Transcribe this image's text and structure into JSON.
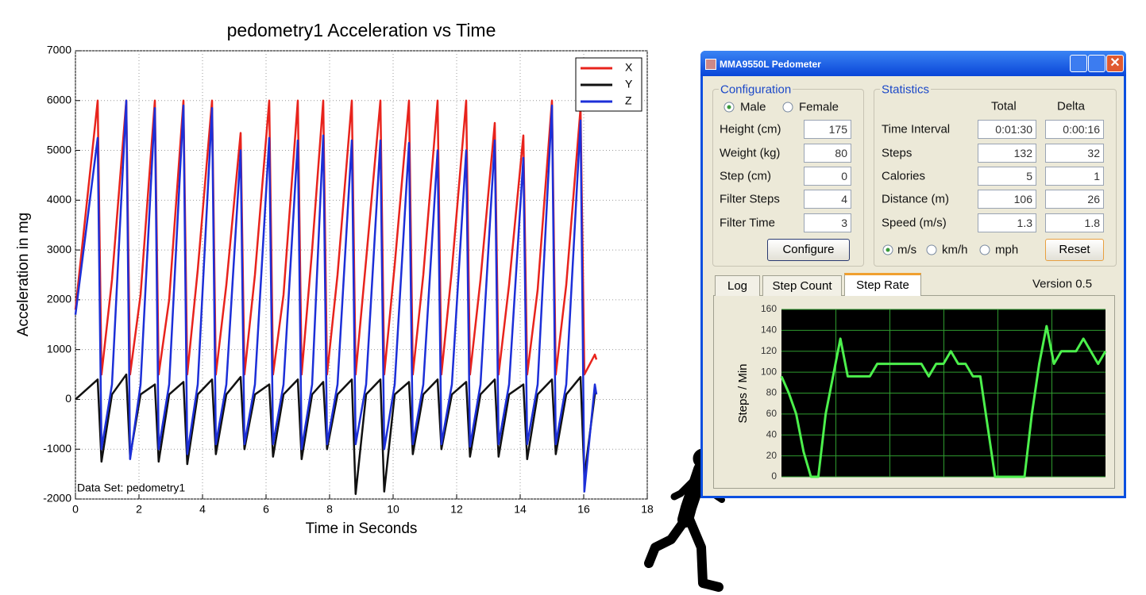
{
  "chart_data": [
    {
      "type": "line",
      "title": "pedometry1 Acceleration vs Time",
      "x_label": "Time in Seconds",
      "y_label": "Acceleration in mg",
      "annotation": "Data Set: pedometry1",
      "xlim": [
        0,
        18
      ],
      "xticks": [
        0,
        2,
        4,
        6,
        8,
        10,
        12,
        14,
        16,
        18
      ],
      "ylim": [
        -2000,
        7000
      ],
      "yticks": [
        -2000,
        -1000,
        0,
        1000,
        2000,
        3000,
        4000,
        5000,
        6000,
        7000
      ],
      "grid": true,
      "legend": "upper right",
      "x": [
        0,
        0.7,
        0.82,
        1.15,
        1.6,
        1.72,
        2.05,
        2.5,
        2.62,
        2.95,
        3.4,
        3.52,
        3.85,
        4.3,
        4.42,
        4.75,
        5.2,
        5.32,
        5.65,
        6.1,
        6.22,
        6.55,
        7.0,
        7.12,
        7.45,
        7.8,
        7.92,
        8.25,
        8.7,
        8.82,
        9.15,
        9.6,
        9.72,
        10.05,
        10.5,
        10.62,
        10.95,
        11.4,
        11.52,
        11.85,
        12.3,
        12.42,
        12.75,
        13.2,
        13.32,
        13.65,
        14.1,
        14.22,
        14.55,
        15.0,
        15.12,
        15.45,
        15.9,
        16.02,
        16.35,
        16.4
      ],
      "series": [
        {
          "name": "X",
          "color": "#e8231c",
          "values": [
            1800,
            6000,
            500,
            2400,
            6000,
            500,
            2100,
            6000,
            500,
            2000,
            6000,
            500,
            2600,
            6000,
            500,
            2300,
            5350,
            500,
            2500,
            6000,
            500,
            2100,
            6000,
            500,
            3000,
            6000,
            500,
            2500,
            6000,
            500,
            2800,
            6000,
            500,
            2700,
            6000,
            500,
            2500,
            6000,
            500,
            2600,
            6000,
            500,
            2400,
            5550,
            500,
            2300,
            5300,
            500,
            2200,
            6000,
            500,
            2300,
            5850,
            500,
            900,
            800
          ]
        },
        {
          "name": "Y",
          "color": "#111111",
          "values": [
            0,
            400,
            -1250,
            100,
            500,
            -1150,
            100,
            300,
            -1250,
            100,
            350,
            -1300,
            100,
            400,
            -1100,
            100,
            450,
            -1000,
            100,
            300,
            -1150,
            100,
            400,
            -1200,
            100,
            350,
            -1000,
            100,
            400,
            -1900,
            100,
            400,
            -1850,
            100,
            350,
            -1100,
            100,
            400,
            -1000,
            100,
            350,
            -1150,
            100,
            400,
            -1150,
            100,
            300,
            -1200,
            100,
            400,
            -1100,
            100,
            450,
            -1550,
            100,
            150
          ]
        },
        {
          "name": "Z",
          "color": "#1c2fd8",
          "values": [
            1700,
            5250,
            -1000,
            300,
            6000,
            -1200,
            300,
            5850,
            -1000,
            300,
            5900,
            -1100,
            300,
            5850,
            -900,
            300,
            5000,
            -900,
            300,
            5250,
            -900,
            300,
            5200,
            -1000,
            300,
            5300,
            -900,
            300,
            5200,
            -900,
            300,
            5200,
            -1000,
            300,
            5150,
            -900,
            300,
            5000,
            -900,
            300,
            5000,
            -950,
            300,
            5200,
            -900,
            300,
            4850,
            -900,
            300,
            5900,
            -900,
            300,
            5600,
            -1850,
            300,
            100
          ]
        }
      ]
    },
    {
      "type": "line",
      "y_label": "Steps / Min",
      "color": "#4cf04c",
      "ylim": [
        0,
        160
      ],
      "yticks": [
        0,
        20,
        40,
        60,
        80,
        100,
        120,
        140,
        160
      ],
      "grid": true,
      "values": [
        96,
        80,
        60,
        24,
        0,
        0,
        60,
        96,
        132,
        96,
        96,
        96,
        96,
        108,
        108,
        108,
        108,
        108,
        108,
        108,
        96,
        108,
        108,
        120,
        108,
        108,
        96,
        96,
        48,
        0,
        0,
        0,
        0,
        0,
        60,
        108,
        144,
        108,
        120,
        120,
        120,
        132,
        120,
        108,
        120
      ]
    }
  ],
  "window": {
    "title": "MMA9550L Pedometer",
    "configuration": {
      "title": "Configuration",
      "genders": [
        "Male",
        "Female"
      ],
      "fields": [
        {
          "label": "Height (cm)",
          "value": 175
        },
        {
          "label": "Weight (kg)",
          "value": 80
        },
        {
          "label": "Step (cm)",
          "value": 0
        },
        {
          "label": "Filter Steps",
          "value": 4
        },
        {
          "label": "Filter Time",
          "value": 3
        }
      ],
      "button": "Configure"
    },
    "statistics": {
      "title": "Statistics",
      "columns": [
        "Total",
        "Delta"
      ],
      "rows": [
        {
          "label": "Time Interval",
          "total": "0:01:30",
          "delta": "0:00:16"
        },
        {
          "label": "Steps",
          "total": "132",
          "delta": "32"
        },
        {
          "label": "Calories",
          "total": "5",
          "delta": "1"
        },
        {
          "label": "Distance (m)",
          "total": "106",
          "delta": "26"
        },
        {
          "label": "Speed (m/s)",
          "total": "1.3",
          "delta": "1.8"
        }
      ],
      "units": [
        "m/s",
        "km/h",
        "mph"
      ],
      "button": "Reset"
    },
    "tabs": [
      "Log",
      "Step Count",
      "Step Rate"
    ],
    "version": "Version 0.5"
  }
}
